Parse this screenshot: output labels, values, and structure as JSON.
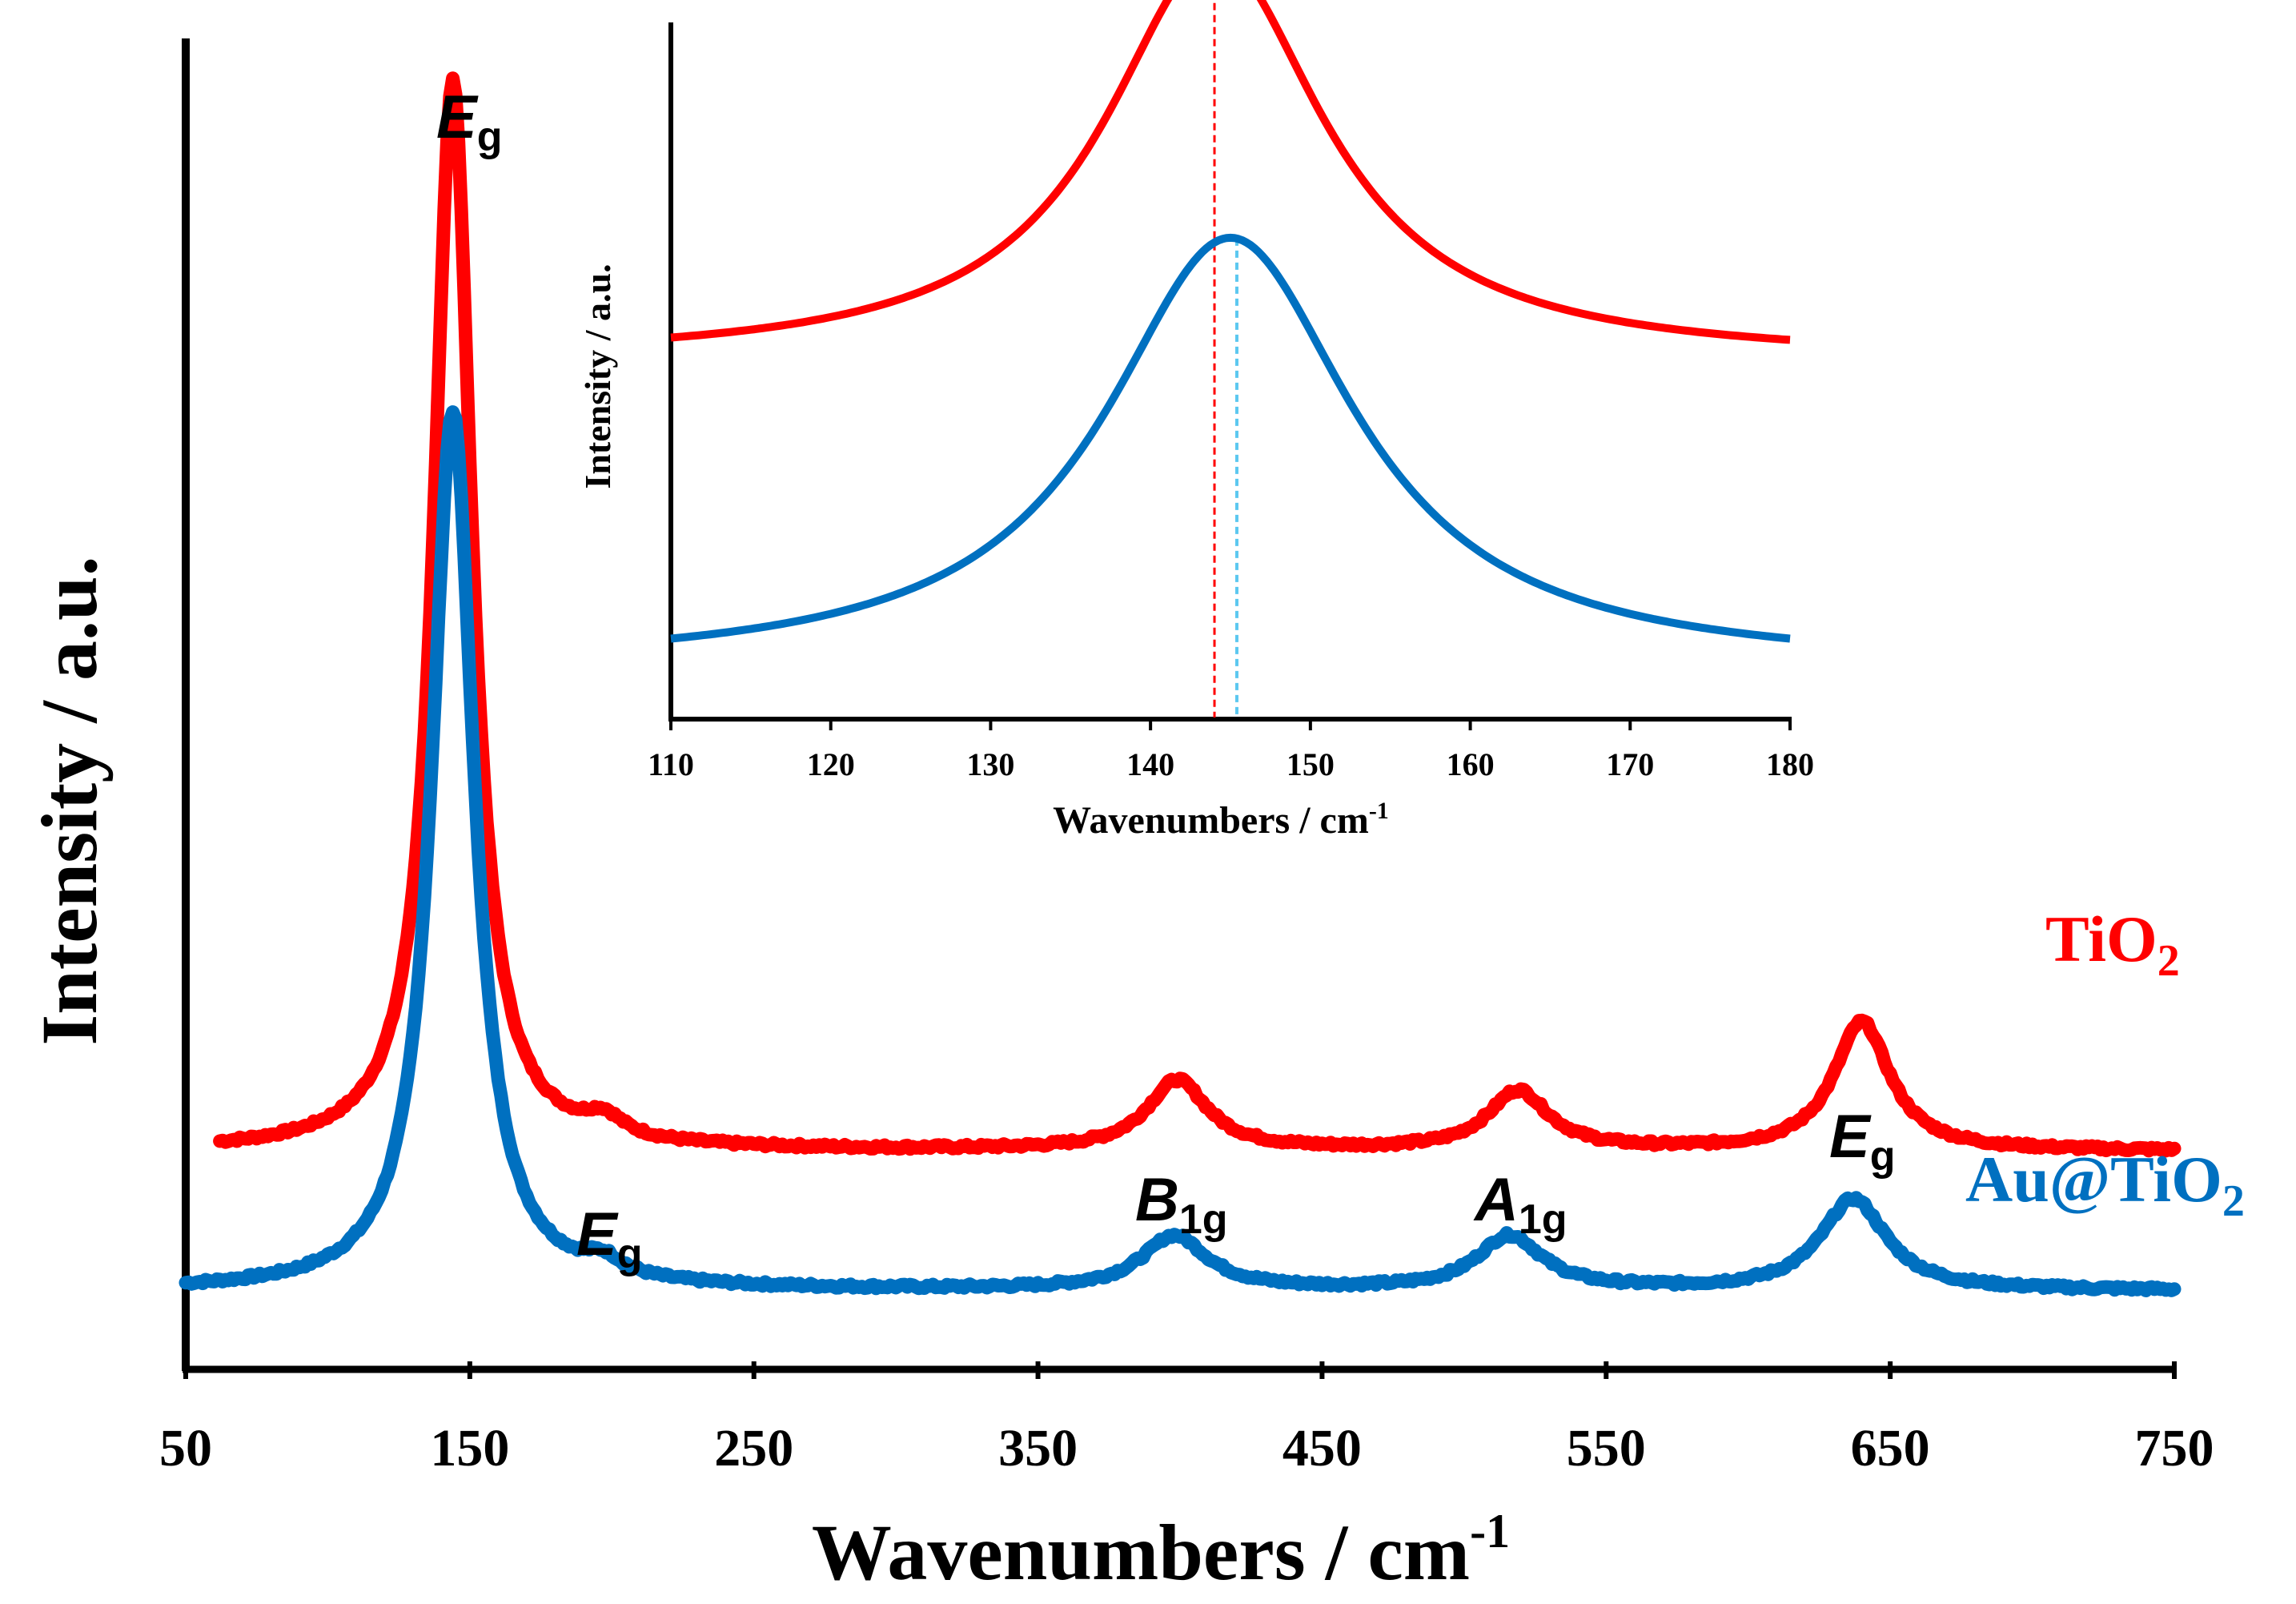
{
  "chart_data": [
    {
      "id": "main",
      "type": "line",
      "title": "",
      "xlabel": "Wavenumbers  / cm",
      "xlabel_sup": "-1",
      "ylabel": "Intensity / a.u.",
      "xlim": [
        50,
        750
      ],
      "xticks": [
        50,
        150,
        250,
        350,
        450,
        550,
        650,
        750
      ],
      "yticks": [],
      "grid": false,
      "series": [
        {
          "name": "TiO",
          "name_sub": "2",
          "color": "#ff0000",
          "baseline": 0.13,
          "x_range": [
            62,
            750
          ],
          "peaks": [
            {
              "center": 144,
              "height": 1.0,
              "width": 8
            },
            {
              "center": 197,
              "height": 0.018,
              "width": 8
            },
            {
              "center": 399,
              "height": 0.065,
              "width": 13
            },
            {
              "center": 519,
              "height": 0.055,
              "width": 13
            },
            {
              "center": 640,
              "height": 0.12,
              "width": 12
            }
          ]
        },
        {
          "name": "Au@TiO",
          "name_sub": "2",
          "color": "#0070c0",
          "baseline": 0.0,
          "x_range": [
            50,
            750
          ],
          "peaks": [
            {
              "center": 144,
              "height": 0.82,
              "width": 9
            },
            {
              "center": 197,
              "height": 0.015,
              "width": 8
            },
            {
              "center": 398,
              "height": 0.05,
              "width": 14
            },
            {
              "center": 516,
              "height": 0.05,
              "width": 14
            },
            {
              "center": 637,
              "height": 0.085,
              "width": 14
            }
          ]
        }
      ],
      "annotations": [
        {
          "main": "E",
          "sub": "g",
          "x": 150
        },
        {
          "main": "E",
          "sub": "g",
          "x": 198
        },
        {
          "main": "B",
          "sub": "1g",
          "x": 398
        },
        {
          "main": "A",
          "sub": "1g",
          "x": 518
        },
        {
          "main": "E",
          "sub": "g",
          "x": 638
        }
      ]
    },
    {
      "id": "inset",
      "type": "line",
      "title": "",
      "xlabel": "Wavenumbers  / cm",
      "xlabel_sup": "-1",
      "ylabel": "Intensity / a.u.",
      "xlim": [
        110,
        180
      ],
      "xticks": [
        110,
        120,
        130,
        140,
        150,
        160,
        170,
        180
      ],
      "grid": false,
      "series": [
        {
          "name": "TiO2",
          "color": "#ff0000",
          "baseline": 0.64,
          "center": 144,
          "height": 0.81,
          "width": 8.3,
          "peak_marker": 144.0
        },
        {
          "name": "Au@TiO2",
          "color": "#0070c0",
          "baseline": 0.025,
          "center": 145,
          "height": 0.86,
          "width": 9.5,
          "peak_marker": 145.4
        }
      ]
    }
  ],
  "colors": {
    "tio2": "#ff0000",
    "au_tio2": "#0070c0",
    "au_marker": "#5cc8f0",
    "axis": "#000000"
  }
}
